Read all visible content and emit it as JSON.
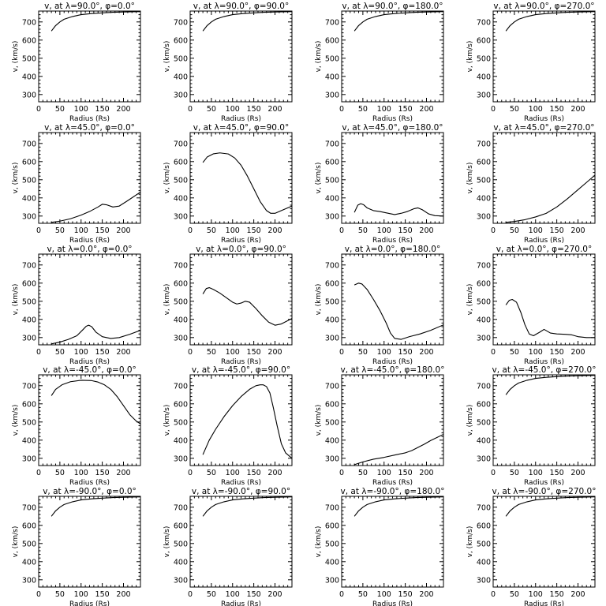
{
  "chart_data": [
    {
      "type": "line",
      "title": "v, at λ=90.0°, φ=0.0°",
      "xlabel": "Radius (Rs)",
      "ylabel": "v, (km/s)",
      "xlim": [
        0,
        240
      ],
      "ylim": [
        260,
        760
      ],
      "xticks": [
        0,
        50,
        100,
        150,
        200
      ],
      "yticks": [
        300,
        400,
        500,
        600,
        700
      ],
      "x": [
        30,
        40,
        50,
        60,
        80,
        100,
        125,
        150,
        175,
        200,
        240
      ],
      "y": [
        650,
        680,
        700,
        715,
        730,
        740,
        746,
        750,
        753,
        755,
        757
      ]
    },
    {
      "type": "line",
      "title": "v, at λ=90.0°, φ=90.0°",
      "xlabel": "Radius (Rs)",
      "ylabel": "v, (km/s)",
      "xlim": [
        0,
        240
      ],
      "ylim": [
        260,
        760
      ],
      "xticks": [
        0,
        50,
        100,
        150,
        200
      ],
      "yticks": [
        300,
        400,
        500,
        600,
        700
      ],
      "x": [
        30,
        40,
        50,
        60,
        80,
        100,
        125,
        150,
        175,
        200,
        240
      ],
      "y": [
        650,
        680,
        700,
        715,
        730,
        740,
        746,
        750,
        753,
        755,
        757
      ]
    },
    {
      "type": "line",
      "title": "v, at λ=90.0°, φ=180.0°",
      "xlabel": "Radius (Rs)",
      "ylabel": "v, (km/s)",
      "xlim": [
        0,
        240
      ],
      "ylim": [
        260,
        760
      ],
      "xticks": [
        0,
        50,
        100,
        150,
        200
      ],
      "yticks": [
        300,
        400,
        500,
        600,
        700
      ],
      "x": [
        30,
        40,
        50,
        60,
        80,
        100,
        125,
        150,
        175,
        200,
        240
      ],
      "y": [
        650,
        680,
        700,
        715,
        730,
        740,
        746,
        750,
        753,
        755,
        757
      ]
    },
    {
      "type": "line",
      "title": "v, at λ=90.0°, φ=270.0°",
      "xlabel": "Radius (Rs)",
      "ylabel": "v, (km/s)",
      "xlim": [
        0,
        240
      ],
      "ylim": [
        260,
        760
      ],
      "xticks": [
        0,
        50,
        100,
        150,
        200
      ],
      "yticks": [
        300,
        400,
        500,
        600,
        700
      ],
      "x": [
        30,
        40,
        50,
        60,
        80,
        100,
        125,
        150,
        175,
        200,
        240
      ],
      "y": [
        650,
        680,
        700,
        715,
        730,
        740,
        746,
        750,
        753,
        755,
        757
      ]
    },
    {
      "type": "line",
      "title": "v, at λ=45.0°, φ=0.0°",
      "xlabel": "Radius (Rs)",
      "ylabel": "v, (km/s)",
      "xlim": [
        0,
        240
      ],
      "ylim": [
        260,
        760
      ],
      "xticks": [
        0,
        50,
        100,
        150,
        200
      ],
      "yticks": [
        300,
        400,
        500,
        600,
        700
      ],
      "x": [
        30,
        50,
        75,
        100,
        120,
        140,
        150,
        160,
        175,
        190,
        210,
        240
      ],
      "y": [
        265,
        272,
        285,
        305,
        325,
        350,
        365,
        362,
        350,
        355,
        385,
        432
      ]
    },
    {
      "type": "line",
      "title": "v, at λ=45.0°, φ=90.0°",
      "xlabel": "Radius (Rs)",
      "ylabel": "v, (km/s)",
      "xlim": [
        0,
        240
      ],
      "ylim": [
        260,
        760
      ],
      "xticks": [
        0,
        50,
        100,
        150,
        200
      ],
      "yticks": [
        300,
        400,
        500,
        600,
        700
      ],
      "x": [
        30,
        40,
        55,
        70,
        90,
        105,
        120,
        135,
        150,
        165,
        180,
        190,
        200,
        215,
        240
      ],
      "y": [
        595,
        625,
        643,
        648,
        642,
        620,
        580,
        520,
        450,
        380,
        330,
        315,
        315,
        330,
        355
      ]
    },
    {
      "type": "line",
      "title": "v, at λ=45.0°, φ=180.0°",
      "xlabel": "Radius (Rs)",
      "ylabel": "v, (km/s)",
      "xlim": [
        0,
        240
      ],
      "ylim": [
        260,
        760
      ],
      "xticks": [
        0,
        50,
        100,
        150,
        200
      ],
      "yticks": [
        300,
        400,
        500,
        600,
        700
      ],
      "x": [
        30,
        38,
        45,
        52,
        60,
        75,
        90,
        110,
        125,
        140,
        155,
        170,
        180,
        190,
        205,
        220,
        240
      ],
      "y": [
        320,
        360,
        368,
        362,
        345,
        330,
        325,
        315,
        308,
        315,
        325,
        340,
        345,
        335,
        312,
        302,
        300
      ]
    },
    {
      "type": "line",
      "title": "v, at λ=45.0°, φ=270.0°",
      "xlabel": "Radius (Rs)",
      "ylabel": "v, (km/s)",
      "xlim": [
        0,
        240
      ],
      "ylim": [
        260,
        760
      ],
      "xticks": [
        0,
        50,
        100,
        150,
        200
      ],
      "yticks": [
        300,
        400,
        500,
        600,
        700
      ],
      "x": [
        30,
        50,
        75,
        100,
        125,
        150,
        175,
        200,
        220,
        240
      ],
      "y": [
        265,
        270,
        280,
        295,
        315,
        350,
        395,
        445,
        485,
        525
      ]
    },
    {
      "type": "line",
      "title": "v, at λ=0.0°, φ=0.0°",
      "xlabel": "Radius (Rs)",
      "ylabel": "v, (km/s)",
      "xlim": [
        0,
        240
      ],
      "ylim": [
        260,
        760
      ],
      "xticks": [
        0,
        50,
        100,
        150,
        200
      ],
      "yticks": [
        300,
        400,
        500,
        600,
        700
      ],
      "x": [
        30,
        50,
        70,
        90,
        105,
        112,
        118,
        125,
        135,
        150,
        170,
        190,
        215,
        240
      ],
      "y": [
        265,
        275,
        290,
        310,
        345,
        362,
        368,
        360,
        330,
        305,
        295,
        300,
        318,
        340
      ]
    },
    {
      "type": "line",
      "title": "v, at λ=0.0°, φ=90.0°",
      "xlabel": "Radius (Rs)",
      "ylabel": "v, (km/s)",
      "xlim": [
        0,
        240
      ],
      "ylim": [
        260,
        760
      ],
      "xticks": [
        0,
        50,
        100,
        150,
        200
      ],
      "yticks": [
        300,
        400,
        500,
        600,
        700
      ],
      "x": [
        30,
        38,
        45,
        55,
        70,
        85,
        100,
        110,
        120,
        130,
        140,
        155,
        170,
        185,
        200,
        215,
        240
      ],
      "y": [
        540,
        570,
        575,
        565,
        545,
        520,
        495,
        485,
        490,
        500,
        495,
        460,
        420,
        385,
        368,
        375,
        405
      ]
    },
    {
      "type": "line",
      "title": "v, at λ=0.0°, φ=180.0°",
      "xlabel": "Radius (Rs)",
      "ylabel": "v, (km/s)",
      "xlim": [
        0,
        240
      ],
      "ylim": [
        260,
        760
      ],
      "xticks": [
        0,
        50,
        100,
        150,
        200
      ],
      "yticks": [
        300,
        400,
        500,
        600,
        700
      ],
      "x": [
        30,
        40,
        48,
        60,
        75,
        90,
        105,
        115,
        125,
        140,
        160,
        185,
        210,
        240
      ],
      "y": [
        590,
        600,
        595,
        565,
        510,
        450,
        380,
        325,
        295,
        290,
        305,
        320,
        340,
        370
      ]
    },
    {
      "type": "line",
      "title": "v, at λ=0.0°, φ=270.0°",
      "xlabel": "Radius (Rs)",
      "ylabel": "v, (km/s)",
      "xlim": [
        0,
        240
      ],
      "ylim": [
        260,
        760
      ],
      "xticks": [
        0,
        50,
        100,
        150,
        200
      ],
      "yticks": [
        300,
        400,
        500,
        600,
        700
      ],
      "x": [
        30,
        38,
        45,
        55,
        65,
        75,
        85,
        95,
        110,
        120,
        135,
        150,
        170,
        185,
        200,
        220,
        240
      ],
      "y": [
        480,
        505,
        510,
        495,
        440,
        370,
        320,
        310,
        330,
        345,
        325,
        320,
        318,
        315,
        305,
        300,
        300
      ]
    },
    {
      "type": "line",
      "title": "v, at λ=-45.0°, φ=0.0°",
      "xlabel": "Radius (Rs)",
      "ylabel": "v, (km/s)",
      "xlim": [
        0,
        240
      ],
      "ylim": [
        260,
        760
      ],
      "xticks": [
        0,
        50,
        100,
        150,
        200
      ],
      "yticks": [
        300,
        400,
        500,
        600,
        700
      ],
      "x": [
        30,
        40,
        55,
        75,
        100,
        125,
        140,
        155,
        170,
        185,
        200,
        215,
        230,
        240
      ],
      "y": [
        645,
        680,
        705,
        722,
        730,
        728,
        720,
        705,
        680,
        640,
        590,
        540,
        505,
        490
      ]
    },
    {
      "type": "line",
      "title": "v, at λ=-45.0°, φ=90.0°",
      "xlabel": "Radius (Rs)",
      "ylabel": "v, (km/s)",
      "xlim": [
        0,
        240
      ],
      "ylim": [
        260,
        760
      ],
      "xticks": [
        0,
        50,
        100,
        150,
        200
      ],
      "yticks": [
        300,
        400,
        500,
        600,
        700
      ],
      "x": [
        30,
        45,
        60,
        80,
        100,
        120,
        140,
        155,
        165,
        172,
        180,
        188,
        196,
        205,
        215,
        225,
        240
      ],
      "y": [
        320,
        400,
        460,
        530,
        590,
        640,
        680,
        700,
        705,
        705,
        695,
        660,
        580,
        480,
        380,
        330,
        300
      ]
    },
    {
      "type": "line",
      "title": "v, at λ=-45.0°, φ=180.0°",
      "xlabel": "Radius (Rs)",
      "ylabel": "v, (km/s)",
      "xlim": [
        0,
        240
      ],
      "ylim": [
        260,
        760
      ],
      "xticks": [
        0,
        50,
        100,
        150,
        200
      ],
      "yticks": [
        300,
        400,
        500,
        600,
        700
      ],
      "x": [
        30,
        50,
        75,
        100,
        125,
        150,
        165,
        180,
        195,
        210,
        225,
        240
      ],
      "y": [
        265,
        280,
        295,
        305,
        318,
        330,
        342,
        360,
        378,
        398,
        415,
        432
      ]
    },
    {
      "type": "line",
      "title": "v, at λ=-45.0°, φ=270.0°",
      "xlabel": "Radius (Rs)",
      "ylabel": "v, (km/s)",
      "xlim": [
        0,
        240
      ],
      "ylim": [
        260,
        760
      ],
      "xticks": [
        0,
        50,
        100,
        150,
        200
      ],
      "yticks": [
        300,
        400,
        500,
        600,
        700
      ],
      "x": [
        30,
        40,
        50,
        60,
        80,
        100,
        125,
        150,
        175,
        200,
        240
      ],
      "y": [
        650,
        680,
        700,
        715,
        730,
        740,
        746,
        750,
        753,
        755,
        757
      ]
    },
    {
      "type": "line",
      "title": "v, at λ=-90.0°, φ=0.0°",
      "xlabel": "Radius (Rs)",
      "ylabel": "v, (km/s)",
      "xlim": [
        0,
        240
      ],
      "ylim": [
        260,
        760
      ],
      "xticks": [
        0,
        50,
        100,
        150,
        200
      ],
      "yticks": [
        300,
        400,
        500,
        600,
        700
      ],
      "x": [
        30,
        40,
        50,
        60,
        80,
        100,
        125,
        150,
        175,
        200,
        240
      ],
      "y": [
        650,
        680,
        700,
        715,
        730,
        740,
        746,
        750,
        753,
        755,
        757
      ]
    },
    {
      "type": "line",
      "title": "v, at λ=-90.0°, φ=90.0°",
      "xlabel": "Radius (Rs)",
      "ylabel": "v, (km/s)",
      "xlim": [
        0,
        240
      ],
      "ylim": [
        260,
        760
      ],
      "xticks": [
        0,
        50,
        100,
        150,
        200
      ],
      "yticks": [
        300,
        400,
        500,
        600,
        700
      ],
      "x": [
        30,
        40,
        50,
        60,
        80,
        100,
        125,
        150,
        175,
        200,
        240
      ],
      "y": [
        650,
        680,
        700,
        715,
        730,
        740,
        746,
        750,
        753,
        755,
        757
      ]
    },
    {
      "type": "line",
      "title": "v, at λ=-90.0°, φ=180.0°",
      "xlabel": "Radius (Rs)",
      "ylabel": "v, (km/s)",
      "xlim": [
        0,
        240
      ],
      "ylim": [
        260,
        760
      ],
      "xticks": [
        0,
        50,
        100,
        150,
        200
      ],
      "yticks": [
        300,
        400,
        500,
        600,
        700
      ],
      "x": [
        30,
        40,
        50,
        60,
        80,
        100,
        125,
        150,
        175,
        200,
        240
      ],
      "y": [
        650,
        680,
        700,
        715,
        730,
        740,
        746,
        750,
        753,
        755,
        757
      ]
    },
    {
      "type": "line",
      "title": "v, at λ=-90.0°, φ=270.0°",
      "xlabel": "Radius (Rs)",
      "ylabel": "v, (km/s)",
      "xlim": [
        0,
        240
      ],
      "ylim": [
        260,
        760
      ],
      "xticks": [
        0,
        50,
        100,
        150,
        200
      ],
      "yticks": [
        300,
        400,
        500,
        600,
        700
      ],
      "x": [
        30,
        40,
        50,
        60,
        80,
        100,
        125,
        150,
        175,
        200,
        240
      ],
      "y": [
        650,
        680,
        700,
        715,
        730,
        740,
        746,
        750,
        753,
        755,
        757
      ]
    }
  ]
}
